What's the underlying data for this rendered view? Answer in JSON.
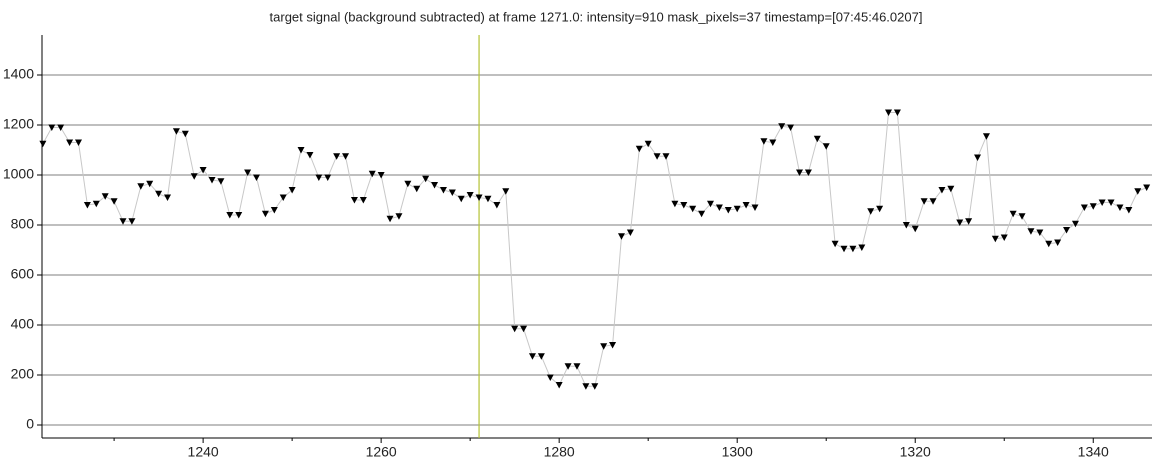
{
  "chart_data": {
    "type": "line",
    "title": "target signal (background subtracted) at frame 1271.0: intensity=910 mask_pixels=37 timestamp=[07:45:46.0207]",
    "x": [
      1222,
      1223,
      1224,
      1225,
      1226,
      1227,
      1228,
      1229,
      1230,
      1231,
      1232,
      1233,
      1234,
      1235,
      1236,
      1237,
      1238,
      1239,
      1240,
      1241,
      1242,
      1243,
      1244,
      1245,
      1246,
      1247,
      1248,
      1249,
      1250,
      1251,
      1252,
      1253,
      1254,
      1255,
      1256,
      1257,
      1258,
      1259,
      1260,
      1261,
      1262,
      1263,
      1264,
      1265,
      1266,
      1267,
      1268,
      1269,
      1270,
      1271,
      1272,
      1273,
      1274,
      1275,
      1276,
      1277,
      1278,
      1279,
      1280,
      1281,
      1282,
      1283,
      1284,
      1285,
      1286,
      1287,
      1288,
      1289,
      1290,
      1291,
      1292,
      1293,
      1294,
      1295,
      1296,
      1297,
      1298,
      1299,
      1300,
      1301,
      1302,
      1303,
      1304,
      1305,
      1306,
      1307,
      1308,
      1309,
      1310,
      1311,
      1312,
      1313,
      1314,
      1315,
      1316,
      1317,
      1318,
      1319,
      1320,
      1321,
      1322,
      1323,
      1324,
      1325,
      1326,
      1327,
      1328,
      1329,
      1330,
      1331,
      1332,
      1333,
      1334,
      1335,
      1336,
      1337,
      1338,
      1339,
      1340,
      1341,
      1342,
      1343,
      1344,
      1345,
      1346
    ],
    "values": [
      1125,
      1190,
      1190,
      1130,
      1130,
      880,
      885,
      915,
      895,
      815,
      815,
      955,
      965,
      925,
      910,
      1175,
      1165,
      995,
      1020,
      980,
      975,
      840,
      840,
      1010,
      990,
      845,
      860,
      910,
      940,
      1100,
      1080,
      990,
      990,
      1075,
      1075,
      900,
      900,
      1005,
      1000,
      825,
      835,
      965,
      945,
      985,
      960,
      940,
      930,
      905,
      920,
      910,
      905,
      880,
      935,
      385,
      385,
      275,
      275,
      190,
      160,
      235,
      235,
      155,
      155,
      315,
      320,
      755,
      770,
      1105,
      1125,
      1075,
      1075,
      885,
      880,
      865,
      845,
      885,
      870,
      860,
      865,
      880,
      870,
      1135,
      1130,
      1195,
      1190,
      1010,
      1010,
      1145,
      1115,
      725,
      705,
      705,
      710,
      855,
      865,
      1250,
      1250,
      800,
      785,
      895,
      895,
      940,
      945,
      810,
      815,
      1070,
      1155,
      745,
      750,
      845,
      835,
      775,
      770,
      725,
      730,
      780,
      805,
      870,
      875,
      890,
      890,
      870,
      860,
      935,
      950
    ],
    "color": "#000000",
    "line_color": "#c8c8c8",
    "xlim": [
      1221.9,
      1346.6
    ],
    "xticks": [
      1240,
      1260,
      1280,
      1300,
      1320,
      1340
    ],
    "xminor_ticks": [
      1230,
      1250,
      1270,
      1290,
      1310,
      1330
    ],
    "ylim": [
      -52,
      1560
    ],
    "yticks": [
      0,
      200,
      400,
      600,
      800,
      1000,
      1200,
      1400
    ],
    "grid": true,
    "vline": 1271,
    "vline_color": "#b5c234"
  }
}
